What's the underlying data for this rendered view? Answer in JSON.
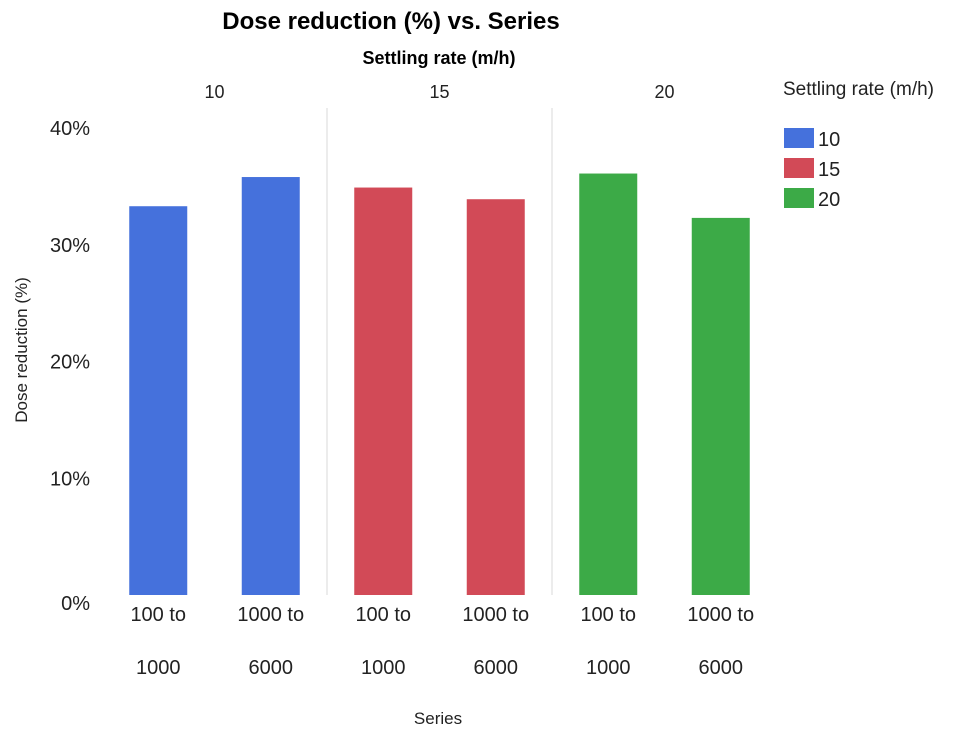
{
  "chart_data": {
    "type": "bar",
    "title": "Dose reduction (%) vs. Series",
    "facet_title": "Settling rate (m/h)",
    "xlabel": "Series",
    "ylabel": "Dose reduction (%)",
    "ylim": [
      0,
      40
    ],
    "yticks": [
      "0%",
      "10%",
      "20%",
      "30%",
      "40%"
    ],
    "grid": false,
    "legend": {
      "title": "Settling rate (m/h)",
      "position": "right"
    },
    "facets": [
      {
        "label": "10",
        "color": "#4571dc",
        "categories": [
          [
            "100 to",
            "1000"
          ],
          [
            "1000 to",
            "6000"
          ]
        ],
        "values": [
          33.3,
          35.8
        ]
      },
      {
        "label": "15",
        "color": "#d24a57",
        "categories": [
          [
            "100 to",
            "1000"
          ],
          [
            "1000 to",
            "6000"
          ]
        ],
        "values": [
          34.9,
          33.9
        ]
      },
      {
        "label": "20",
        "color": "#3caa47",
        "categories": [
          [
            "100 to",
            "1000"
          ],
          [
            "1000 to",
            "6000"
          ]
        ],
        "values": [
          36.1,
          32.3
        ]
      }
    ]
  }
}
